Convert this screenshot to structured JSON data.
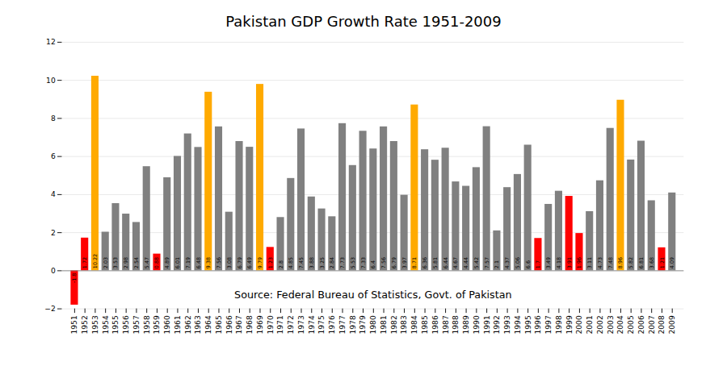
{
  "chart_data": {
    "type": "bar",
    "title": "Pakistan GDP Growth Rate 1951-2009",
    "annotations": [
      "Source: Federal Bureau of Statistics, Govt. of Pakistan"
    ],
    "categories": [
      "1951",
      "1952",
      "1953",
      "1954",
      "1955",
      "1956",
      "1957",
      "1958",
      "1959",
      "1960",
      "1961",
      "1962",
      "1963",
      "1964",
      "1965",
      "1966",
      "1967",
      "1968",
      "1969",
      "1970",
      "1971",
      "1972",
      "1973",
      "1974",
      "1975",
      "1976",
      "1977",
      "1978",
      "1979",
      "1980",
      "1981",
      "1982",
      "1983",
      "1984",
      "1985",
      "1986",
      "1987",
      "1988",
      "1989",
      "1990",
      "1991",
      "1992",
      "1993",
      "1994",
      "1995",
      "1996",
      "1997",
      "1998",
      "1999",
      "2000",
      "2001",
      "2002",
      "2003",
      "2004",
      "2005",
      "2006",
      "2007",
      "2008",
      "2009"
    ],
    "values": [
      -1.8,
      1.72,
      10.22,
      2.03,
      3.53,
      2.98,
      2.54,
      5.47,
      0.88,
      4.89,
      6.01,
      7.19,
      6.48,
      9.38,
      7.56,
      3.08,
      6.79,
      6.49,
      9.79,
      1.23,
      2.8,
      4.85,
      7.45,
      3.88,
      3.25,
      2.84,
      7.73,
      5.53,
      7.33,
      6.4,
      7.56,
      6.79,
      3.97,
      8.71,
      6.36,
      5.81,
      6.44,
      4.67,
      4.44,
      5.42,
      7.57,
      2.1,
      4.37,
      5.06,
      6.6,
      1.7,
      3.49,
      4.18,
      3.91,
      1.96,
      3.11,
      4.73,
      7.48,
      8.96,
      5.82,
      6.81,
      3.68,
      1.21,
      4.09
    ],
    "colors": [
      "#ff0000",
      "#ff0000",
      "#ffaa00",
      "#808080",
      "#808080",
      "#808080",
      "#808080",
      "#808080",
      "#ff0000",
      "#808080",
      "#808080",
      "#808080",
      "#808080",
      "#ffaa00",
      "#808080",
      "#808080",
      "#808080",
      "#808080",
      "#ffaa00",
      "#ff0000",
      "#808080",
      "#808080",
      "#808080",
      "#808080",
      "#808080",
      "#808080",
      "#808080",
      "#808080",
      "#808080",
      "#808080",
      "#808080",
      "#808080",
      "#808080",
      "#ffaa00",
      "#808080",
      "#808080",
      "#808080",
      "#808080",
      "#808080",
      "#808080",
      "#808080",
      "#808080",
      "#808080",
      "#808080",
      "#808080",
      "#ff0000",
      "#808080",
      "#808080",
      "#ff0000",
      "#ff0000",
      "#808080",
      "#808080",
      "#808080",
      "#ffaa00",
      "#808080",
      "#808080",
      "#808080",
      "#ff0000",
      "#808080"
    ],
    "ylim": [
      -2,
      12
    ],
    "yticks": [
      -2,
      0,
      2,
      4,
      6,
      8,
      10,
      12
    ],
    "grid": true,
    "data_labels": true
  }
}
